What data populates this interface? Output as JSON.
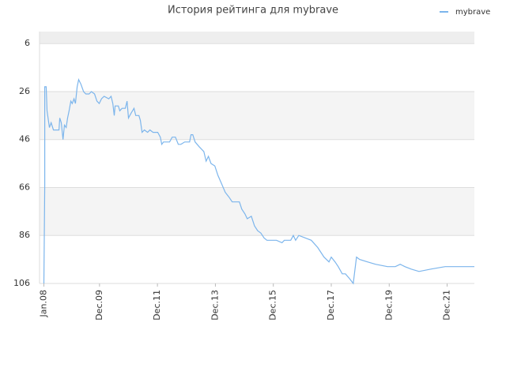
{
  "chart_data": {
    "type": "line",
    "title": "История рейтинга для mybrave",
    "x": [
      2008.0,
      2008.03,
      2008.03,
      2008.08,
      2008.11,
      2008.19,
      2008.25,
      2008.33,
      2008.52,
      2008.55,
      2008.6,
      2008.66,
      2008.71,
      2008.77,
      2008.82,
      2008.87,
      2008.93,
      2008.98,
      2009.04,
      2009.09,
      2009.15,
      2009.2,
      2009.28,
      2009.37,
      2009.45,
      2009.56,
      2009.64,
      2009.75,
      2009.83,
      2009.91,
      2009.99,
      2010.08,
      2010.24,
      2010.32,
      2010.38,
      2010.43,
      2010.46,
      2010.57,
      2010.62,
      2010.7,
      2010.81,
      2010.87,
      2010.92,
      2011.01,
      2011.11,
      2011.17,
      2011.28,
      2011.33,
      2011.39,
      2011.47,
      2011.58,
      2011.66,
      2011.77,
      2011.85,
      2011.93,
      2012.02,
      2012.07,
      2012.13,
      2012.34,
      2012.43,
      2012.54,
      2012.64,
      2012.73,
      2012.86,
      2013.03,
      2013.08,
      2013.14,
      2013.22,
      2013.36,
      2013.52,
      2013.6,
      2013.68,
      2013.77,
      2013.9,
      2014.01,
      2014.12,
      2014.26,
      2014.39,
      2014.5,
      2014.61,
      2014.75,
      2014.83,
      2014.94,
      2015.02,
      2015.16,
      2015.27,
      2015.38,
      2015.49,
      2015.6,
      2015.7,
      2015.81,
      2016.03,
      2016.22,
      2016.3,
      2016.52,
      2016.61,
      2016.69,
      2016.8,
      2017.02,
      2017.23,
      2017.45,
      2017.67,
      2017.84,
      2017.92,
      2018.05,
      2018.16,
      2018.3,
      2018.41,
      2018.55,
      2018.68,
      2018.79,
      2018.9,
      2019.17,
      2019.45,
      2019.86,
      2020.13,
      2020.3,
      2020.46,
      2020.68,
      2020.95,
      2021.36,
      2021.85,
      2022.86
    ],
    "series": [
      {
        "name": "mybrave",
        "color": "#7cb5ec",
        "values": [
          106,
          65,
          24,
          24,
          34,
          41,
          39,
          42,
          42,
          37,
          39,
          46,
          40,
          41,
          37,
          34,
          30,
          31,
          29,
          31,
          24,
          21,
          23,
          26,
          27,
          27,
          26,
          27,
          30,
          31,
          29,
          28,
          29,
          28,
          31,
          36,
          32,
          32,
          34,
          33,
          33,
          30,
          37,
          35,
          33,
          36,
          36,
          38,
          43,
          42,
          43,
          42,
          43,
          43,
          43,
          45,
          48,
          47,
          47,
          45,
          45,
          48,
          48,
          47,
          47,
          44,
          44,
          47,
          49,
          51,
          55,
          53,
          56,
          57,
          61,
          64,
          68,
          70,
          72,
          72,
          72,
          75,
          77,
          79,
          78,
          82,
          84,
          85,
          87,
          88,
          88,
          88,
          89,
          88,
          88,
          86,
          88,
          86,
          87,
          88,
          91,
          95,
          97,
          95,
          97,
          99,
          102,
          102,
          104,
          106,
          95,
          96,
          97,
          98,
          99,
          99,
          98,
          99,
          100,
          101,
          100,
          99,
          99
        ]
      }
    ],
    "xlim": [
      2007.85,
      2022.86
    ],
    "xticks": [
      {
        "value": 2008.0,
        "label": "Jan.08"
      },
      {
        "value": 2009.92,
        "label": "Dec.09"
      },
      {
        "value": 2011.92,
        "label": "Dec.11"
      },
      {
        "value": 2013.92,
        "label": "Dec.13"
      },
      {
        "value": 2015.92,
        "label": "Dec.15"
      },
      {
        "value": 2017.92,
        "label": "Dec.17"
      },
      {
        "value": 2019.92,
        "label": "Dec.19"
      },
      {
        "value": 2021.92,
        "label": "Dec.21"
      }
    ],
    "ylim": [
      106,
      1
    ],
    "yticks": [
      6,
      26,
      46,
      66,
      86,
      106
    ],
    "grid": true,
    "legend": "top-right"
  }
}
